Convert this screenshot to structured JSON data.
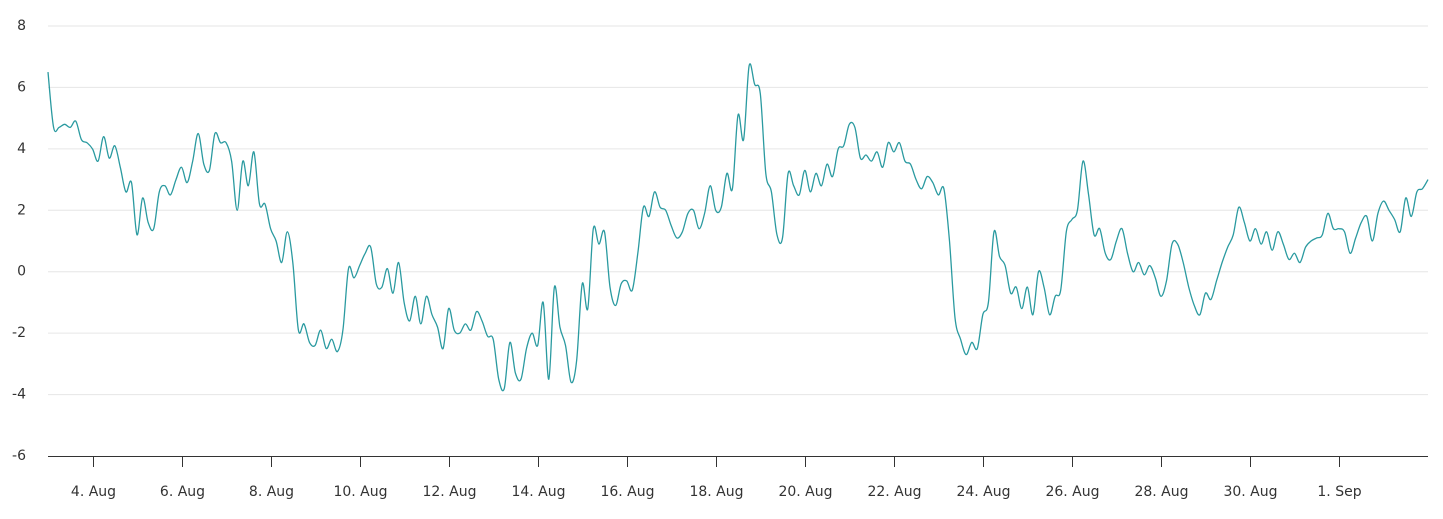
{
  "chart_data": {
    "type": "line",
    "title": "",
    "xlabel": "",
    "ylabel": "",
    "ylim": [
      -6,
      8
    ],
    "yticks": [
      -6,
      -4,
      -2,
      0,
      2,
      4,
      6,
      8
    ],
    "ytick_labels": [
      "-6",
      "-4",
      "-2",
      "0",
      "2",
      "4",
      "6",
      "8"
    ],
    "xlim": [
      "2024-08-03",
      "2024-09-03"
    ],
    "xticks": [
      "2024-08-04",
      "2024-08-06",
      "2024-08-08",
      "2024-08-10",
      "2024-08-12",
      "2024-08-14",
      "2024-08-16",
      "2024-08-18",
      "2024-08-20",
      "2024-08-22",
      "2024-08-24",
      "2024-08-26",
      "2024-08-28",
      "2024-08-30",
      "2024-09-01"
    ],
    "xtick_labels": [
      "4. Aug",
      "6. Aug",
      "8. Aug",
      "10. Aug",
      "12. Aug",
      "14. Aug",
      "16. Aug",
      "18. Aug",
      "20. Aug",
      "22. Aug",
      "24. Aug",
      "26. Aug",
      "28. Aug",
      "30. Aug",
      "1. Sep"
    ],
    "grid": true,
    "legend": "none",
    "series": [
      {
        "color": "#2a9aa0",
        "x": [
          "2024-08-03 00:00",
          "2024-08-03 03:00",
          "2024-08-03 06:00",
          "2024-08-03 09:00",
          "2024-08-03 12:00",
          "2024-08-03 15:00",
          "2024-08-03 18:00",
          "2024-08-03 21:00",
          "2024-08-04 00:00",
          "2024-08-04 03:00",
          "2024-08-04 06:00",
          "2024-08-04 09:00",
          "2024-08-04 12:00",
          "2024-08-04 15:00",
          "2024-08-04 18:00",
          "2024-08-04 21:00",
          "2024-08-05 00:00",
          "2024-08-05 03:00",
          "2024-08-05 06:00",
          "2024-08-05 09:00",
          "2024-08-05 12:00",
          "2024-08-05 15:00",
          "2024-08-05 18:00",
          "2024-08-05 21:00",
          "2024-08-06 00:00",
          "2024-08-06 03:00",
          "2024-08-06 06:00",
          "2024-08-06 09:00",
          "2024-08-06 12:00",
          "2024-08-06 15:00",
          "2024-08-06 18:00",
          "2024-08-06 21:00",
          "2024-08-07 00:00",
          "2024-08-07 03:00",
          "2024-08-07 06:00",
          "2024-08-07 09:00",
          "2024-08-07 12:00",
          "2024-08-07 15:00",
          "2024-08-07 18:00",
          "2024-08-07 21:00",
          "2024-08-08 00:00",
          "2024-08-08 03:00",
          "2024-08-08 06:00",
          "2024-08-08 09:00",
          "2024-08-08 12:00",
          "2024-08-08 15:00",
          "2024-08-08 18:00",
          "2024-08-08 21:00",
          "2024-08-09 00:00",
          "2024-08-09 03:00",
          "2024-08-09 06:00",
          "2024-08-09 09:00",
          "2024-08-09 12:00",
          "2024-08-09 15:00",
          "2024-08-09 18:00",
          "2024-08-09 21:00",
          "2024-08-10 00:00",
          "2024-08-10 03:00",
          "2024-08-10 06:00",
          "2024-08-10 09:00",
          "2024-08-10 12:00",
          "2024-08-10 15:00",
          "2024-08-10 18:00",
          "2024-08-10 21:00",
          "2024-08-11 00:00",
          "2024-08-11 03:00",
          "2024-08-11 06:00",
          "2024-08-11 09:00",
          "2024-08-11 12:00",
          "2024-08-11 15:00",
          "2024-08-11 18:00",
          "2024-08-11 21:00",
          "2024-08-12 00:00",
          "2024-08-12 03:00",
          "2024-08-12 06:00",
          "2024-08-12 09:00",
          "2024-08-12 12:00",
          "2024-08-12 15:00",
          "2024-08-12 18:00",
          "2024-08-12 21:00",
          "2024-08-13 00:00",
          "2024-08-13 03:00",
          "2024-08-13 06:00",
          "2024-08-13 09:00",
          "2024-08-13 12:00",
          "2024-08-13 15:00",
          "2024-08-13 18:00",
          "2024-08-13 21:00",
          "2024-08-14 00:00",
          "2024-08-14 03:00",
          "2024-08-14 06:00",
          "2024-08-14 09:00",
          "2024-08-14 12:00",
          "2024-08-14 15:00",
          "2024-08-14 18:00",
          "2024-08-14 21:00",
          "2024-08-15 00:00",
          "2024-08-15 03:00",
          "2024-08-15 06:00",
          "2024-08-15 09:00",
          "2024-08-15 12:00",
          "2024-08-15 15:00",
          "2024-08-15 18:00",
          "2024-08-15 21:00",
          "2024-08-16 00:00",
          "2024-08-16 03:00",
          "2024-08-16 06:00",
          "2024-08-16 09:00",
          "2024-08-16 12:00",
          "2024-08-16 15:00",
          "2024-08-16 18:00",
          "2024-08-16 21:00",
          "2024-08-17 00:00",
          "2024-08-17 03:00",
          "2024-08-17 06:00",
          "2024-08-17 09:00",
          "2024-08-17 12:00",
          "2024-08-17 15:00",
          "2024-08-17 18:00",
          "2024-08-17 21:00",
          "2024-08-18 00:00",
          "2024-08-18 03:00",
          "2024-08-18 06:00",
          "2024-08-18 09:00",
          "2024-08-18 12:00",
          "2024-08-18 15:00",
          "2024-08-18 18:00",
          "2024-08-18 21:00",
          "2024-08-19 00:00",
          "2024-08-19 03:00",
          "2024-08-19 06:00",
          "2024-08-19 09:00",
          "2024-08-19 12:00",
          "2024-08-19 15:00",
          "2024-08-19 18:00",
          "2024-08-19 21:00",
          "2024-08-20 00:00",
          "2024-08-20 03:00",
          "2024-08-20 06:00",
          "2024-08-20 09:00",
          "2024-08-20 12:00",
          "2024-08-20 15:00",
          "2024-08-20 18:00",
          "2024-08-20 21:00",
          "2024-08-21 00:00",
          "2024-08-21 03:00",
          "2024-08-21 06:00",
          "2024-08-21 09:00",
          "2024-08-21 12:00",
          "2024-08-21 15:00",
          "2024-08-21 18:00",
          "2024-08-21 21:00",
          "2024-08-22 00:00",
          "2024-08-22 03:00",
          "2024-08-22 06:00",
          "2024-08-22 09:00",
          "2024-08-22 12:00",
          "2024-08-22 15:00",
          "2024-08-22 18:00",
          "2024-08-22 21:00",
          "2024-08-23 00:00",
          "2024-08-23 03:00",
          "2024-08-23 06:00",
          "2024-08-23 09:00",
          "2024-08-23 12:00",
          "2024-08-23 15:00",
          "2024-08-23 18:00",
          "2024-08-23 21:00",
          "2024-08-24 00:00",
          "2024-08-24 03:00",
          "2024-08-24 06:00",
          "2024-08-24 09:00",
          "2024-08-24 12:00",
          "2024-08-24 15:00",
          "2024-08-24 18:00",
          "2024-08-24 21:00",
          "2024-08-25 00:00",
          "2024-08-25 03:00",
          "2024-08-25 06:00",
          "2024-08-25 09:00",
          "2024-08-25 12:00",
          "2024-08-25 15:00",
          "2024-08-25 18:00",
          "2024-08-25 21:00",
          "2024-08-26 00:00",
          "2024-08-26 03:00",
          "2024-08-26 06:00",
          "2024-08-26 09:00",
          "2024-08-26 12:00",
          "2024-08-26 15:00",
          "2024-08-26 18:00",
          "2024-08-26 21:00",
          "2024-08-27 00:00",
          "2024-08-27 03:00",
          "2024-08-27 06:00",
          "2024-08-27 09:00",
          "2024-08-27 12:00",
          "2024-08-27 15:00",
          "2024-08-27 18:00",
          "2024-08-27 21:00",
          "2024-08-28 00:00",
          "2024-08-28 03:00",
          "2024-08-28 06:00",
          "2024-08-28 09:00",
          "2024-08-28 12:00",
          "2024-08-28 15:00",
          "2024-08-28 18:00",
          "2024-08-28 21:00",
          "2024-08-29 00:00",
          "2024-08-29 03:00",
          "2024-08-29 06:00",
          "2024-08-29 09:00",
          "2024-08-29 12:00",
          "2024-08-29 15:00",
          "2024-08-29 18:00",
          "2024-08-29 21:00",
          "2024-08-30 00:00",
          "2024-08-30 03:00",
          "2024-08-30 06:00",
          "2024-08-30 09:00",
          "2024-08-30 12:00",
          "2024-08-30 15:00",
          "2024-08-30 18:00",
          "2024-08-30 21:00",
          "2024-08-31 00:00",
          "2024-08-31 03:00",
          "2024-08-31 06:00",
          "2024-08-31 09:00",
          "2024-08-31 12:00",
          "2024-08-31 15:00",
          "2024-08-31 18:00",
          "2024-08-31 21:00",
          "2024-09-01 00:00",
          "2024-09-01 03:00",
          "2024-09-01 06:00",
          "2024-09-01 09:00",
          "2024-09-01 12:00",
          "2024-09-01 15:00",
          "2024-09-01 18:00",
          "2024-09-01 21:00",
          "2024-09-02 00:00",
          "2024-09-02 03:00",
          "2024-09-02 06:00",
          "2024-09-02 09:00",
          "2024-09-02 12:00",
          "2024-09-02 15:00",
          "2024-09-02 18:00",
          "2024-09-02 21:00",
          "2024-09-03 00:00"
        ],
        "values": [
          6.5,
          4.7,
          4.7,
          4.8,
          4.7,
          4.9,
          4.3,
          4.2,
          4.0,
          3.6,
          4.4,
          3.7,
          4.1,
          3.4,
          2.6,
          2.9,
          1.2,
          2.4,
          1.6,
          1.4,
          2.6,
          2.8,
          2.5,
          3.0,
          3.4,
          2.9,
          3.6,
          4.5,
          3.5,
          3.3,
          4.5,
          4.2,
          4.2,
          3.6,
          2.0,
          3.6,
          2.8,
          3.9,
          2.2,
          2.2,
          1.4,
          1.0,
          0.3,
          1.3,
          0.3,
          -1.9,
          -1.7,
          -2.3,
          -2.4,
          -1.9,
          -2.5,
          -2.2,
          -2.6,
          -1.9,
          0.1,
          -0.2,
          0.2,
          0.6,
          0.8,
          -0.4,
          -0.5,
          0.1,
          -0.7,
          0.3,
          -1.0,
          -1.6,
          -0.8,
          -1.7,
          -0.8,
          -1.4,
          -1.8,
          -2.5,
          -1.2,
          -1.9,
          -2.0,
          -1.7,
          -1.9,
          -1.3,
          -1.6,
          -2.1,
          -2.2,
          -3.5,
          -3.8,
          -2.3,
          -3.3,
          -3.5,
          -2.5,
          -2.0,
          -2.4,
          -1.0,
          -3.5,
          -0.5,
          -1.8,
          -2.4,
          -3.6,
          -2.9,
          -0.4,
          -1.2,
          1.4,
          0.9,
          1.3,
          -0.5,
          -1.1,
          -0.4,
          -0.3,
          -0.6,
          0.6,
          2.1,
          1.8,
          2.6,
          2.1,
          2.0,
          1.5,
          1.1,
          1.3,
          1.9,
          2.0,
          1.4,
          1.9,
          2.8,
          2.0,
          2.1,
          3.2,
          2.7,
          5.1,
          4.3,
          6.7,
          6.1,
          5.8,
          3.2,
          2.6,
          1.2,
          1.1,
          3.2,
          2.8,
          2.5,
          3.3,
          2.6,
          3.2,
          2.8,
          3.5,
          3.1,
          4.0,
          4.1,
          4.8,
          4.7,
          3.7,
          3.8,
          3.6,
          3.9,
          3.4,
          4.2,
          3.9,
          4.2,
          3.6,
          3.5,
          3.0,
          2.7,
          3.1,
          2.9,
          2.5,
          2.7,
          1.0,
          -1.5,
          -2.2,
          -2.7,
          -2.3,
          -2.5,
          -1.4,
          -1.0,
          1.3,
          0.5,
          0.2,
          -0.7,
          -0.5,
          -1.2,
          -0.5,
          -1.4,
          0.0,
          -0.5,
          -1.4,
          -0.8,
          -0.6,
          1.3,
          1.7,
          2.0,
          3.6,
          2.5,
          1.2,
          1.4,
          0.6,
          0.4,
          1.0,
          1.4,
          0.6,
          0.0,
          0.3,
          -0.1,
          0.2,
          -0.2,
          -0.8,
          -0.3,
          0.9,
          0.9,
          0.3,
          -0.5,
          -1.1,
          -1.4,
          -0.7,
          -0.9,
          -0.3,
          0.3,
          0.8,
          1.2,
          2.1,
          1.6,
          1.0,
          1.4,
          0.9,
          1.3,
          0.7,
          1.3,
          0.9,
          0.4,
          0.6,
          0.3,
          0.8,
          1.0,
          1.1,
          1.2,
          1.9,
          1.4,
          1.4,
          1.3,
          0.6,
          1.1,
          1.6,
          1.8,
          1.0,
          1.9,
          2.3,
          2.0,
          1.7,
          1.3,
          2.4,
          1.8,
          2.6,
          2.7,
          3.0
        ]
      }
    ]
  }
}
